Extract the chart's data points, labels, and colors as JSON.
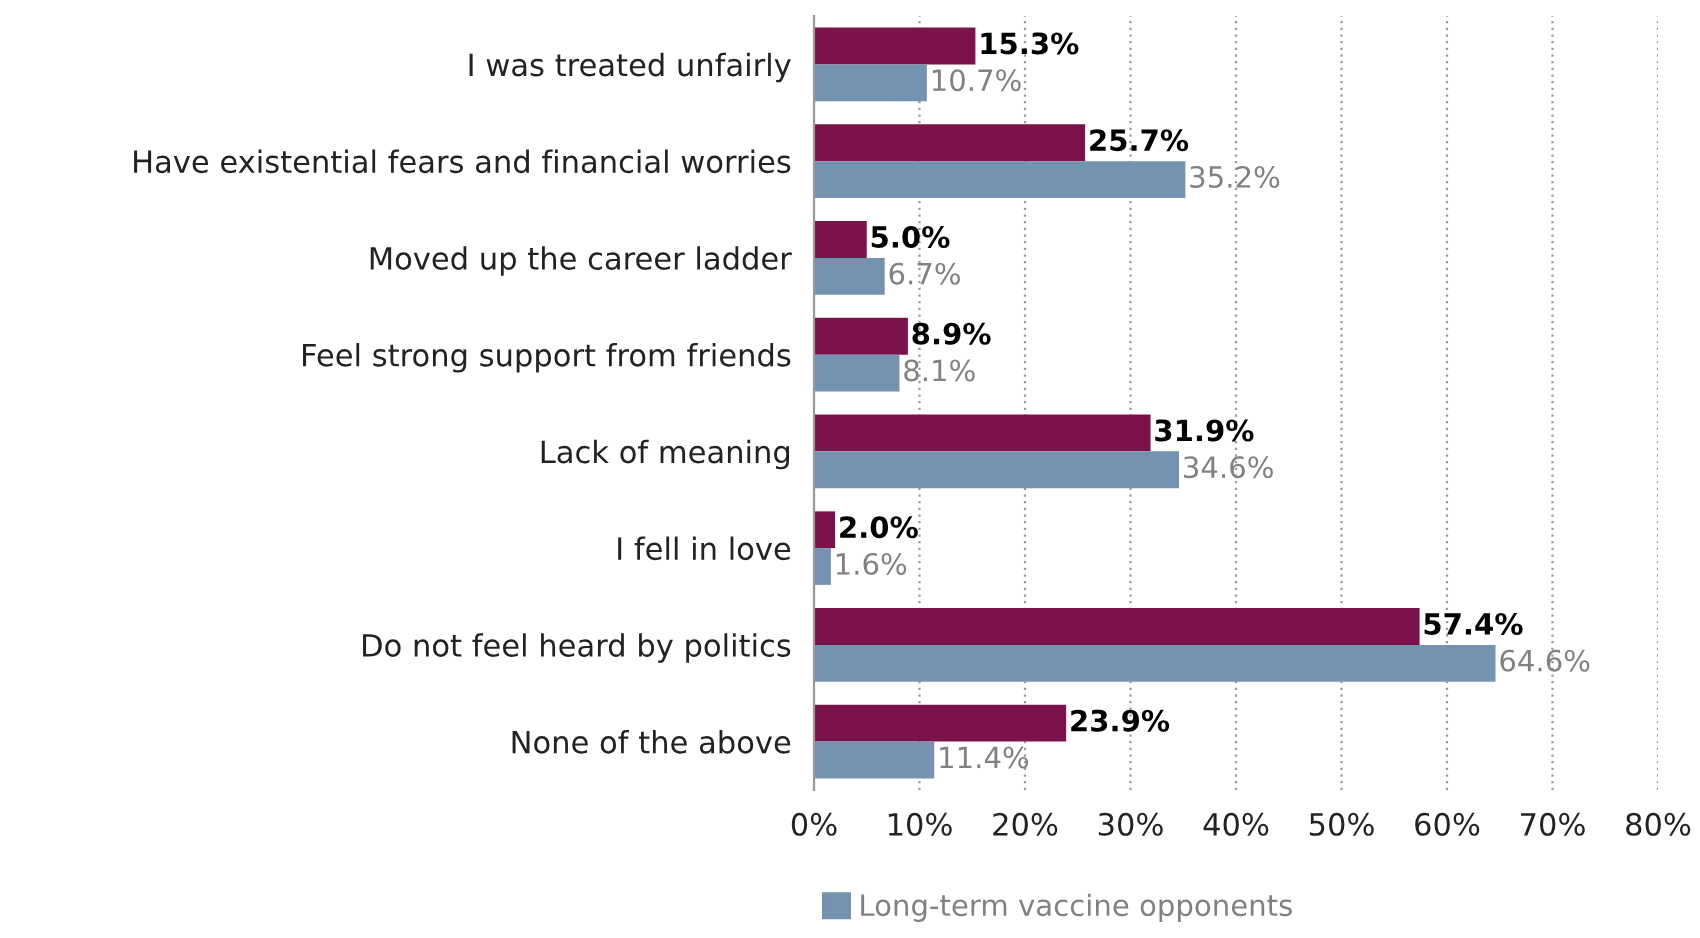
{
  "chart_data": {
    "type": "bar",
    "orientation": "horizontal",
    "categories": [
      "I was treated unfairly",
      "Have existential fears and financial worries",
      "Moved up the career ladder",
      "Feel strong support from friends",
      "Lack of meaning",
      "I fell in love",
      "Do not feel heard by politics",
      "None of the above"
    ],
    "series": [
      {
        "color": "#7b1249",
        "values": [
          15.3,
          25.7,
          5.0,
          8.9,
          31.9,
          2.0,
          57.4,
          23.9
        ],
        "value_labels": [
          "15.3%",
          "25.7%",
          "5.0%",
          "8.9%",
          "31.9%",
          "2.0%",
          "57.4%",
          "23.9%"
        ]
      },
      {
        "name": "Long-term vaccine opponents",
        "color": "#7393b0",
        "values": [
          10.7,
          35.2,
          6.7,
          8.1,
          34.6,
          1.6,
          64.6,
          11.4
        ],
        "value_labels": [
          "10.7%",
          "35.2%",
          "6.7%",
          "8.1%",
          "34.6%",
          "1.6%",
          "64.6%",
          "11.4%"
        ]
      }
    ],
    "xlim": [
      0,
      80
    ],
    "xticks": [
      {
        "value": 0,
        "label": "0%"
      },
      {
        "value": 10,
        "label": "10%"
      },
      {
        "value": 20,
        "label": "20%"
      },
      {
        "value": 30,
        "label": "30%"
      },
      {
        "value": 40,
        "label": "40%"
      },
      {
        "value": 50,
        "label": "50%"
      },
      {
        "value": 60,
        "label": "60%"
      },
      {
        "value": 70,
        "label": "70%"
      },
      {
        "value": 80,
        "label": "80%"
      }
    ],
    "grid": "x",
    "legend": "bottom"
  }
}
